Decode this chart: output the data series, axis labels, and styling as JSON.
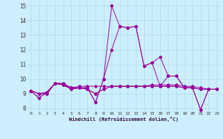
{
  "xlabel": "Windchill (Refroidissement éolien,°C)",
  "background_color": "#cceeff",
  "line_color": "#990099",
  "grid_color": "#aadddd",
  "xlim": [
    -0.5,
    23.5
  ],
  "ylim": [
    7.8,
    15.3
  ],
  "yticks": [
    8,
    9,
    10,
    11,
    12,
    13,
    14,
    15
  ],
  "xticks": [
    0,
    1,
    2,
    3,
    4,
    5,
    6,
    7,
    8,
    9,
    10,
    11,
    12,
    13,
    14,
    15,
    16,
    17,
    18,
    19,
    20,
    21,
    22,
    23
  ],
  "series": [
    [
      9.2,
      8.7,
      9.1,
      9.7,
      9.7,
      9.4,
      9.4,
      9.4,
      8.4,
      10.0,
      15.0,
      13.6,
      13.5,
      13.6,
      10.9,
      11.1,
      11.5,
      10.2,
      10.2,
      9.4,
      9.4,
      7.9,
      9.3,
      9.3
    ],
    [
      9.2,
      8.7,
      9.1,
      9.7,
      9.7,
      9.4,
      9.4,
      9.4,
      8.4,
      10.0,
      12.0,
      13.6,
      13.5,
      13.6,
      10.9,
      11.1,
      9.5,
      10.2,
      10.2,
      9.4,
      9.4,
      7.9,
      9.3,
      9.3
    ],
    [
      9.2,
      9.0,
      9.0,
      9.7,
      9.6,
      9.3,
      9.4,
      9.3,
      9.0,
      9.3,
      9.5,
      9.5,
      9.5,
      9.5,
      9.5,
      9.5,
      9.5,
      9.5,
      9.5,
      9.4,
      9.4,
      9.3,
      9.3,
      9.3
    ],
    [
      9.2,
      9.0,
      9.0,
      9.7,
      9.6,
      9.3,
      9.4,
      9.3,
      9.0,
      9.3,
      9.5,
      9.5,
      9.5,
      9.5,
      9.5,
      9.5,
      9.5,
      9.5,
      9.5,
      9.4,
      9.4,
      9.3,
      9.3,
      9.3
    ],
    [
      9.2,
      9.0,
      9.1,
      9.7,
      9.6,
      9.4,
      9.5,
      9.5,
      9.5,
      9.5,
      9.5,
      9.5,
      9.5,
      9.5,
      9.5,
      9.6,
      9.6,
      9.6,
      9.6,
      9.5,
      9.5,
      9.4,
      9.3,
      9.3
    ]
  ],
  "xlabel_fontsize": 5.0,
  "xtick_fontsize": 4.5,
  "ytick_fontsize": 5.5,
  "linewidth": 0.7,
  "markersize": 2.0
}
